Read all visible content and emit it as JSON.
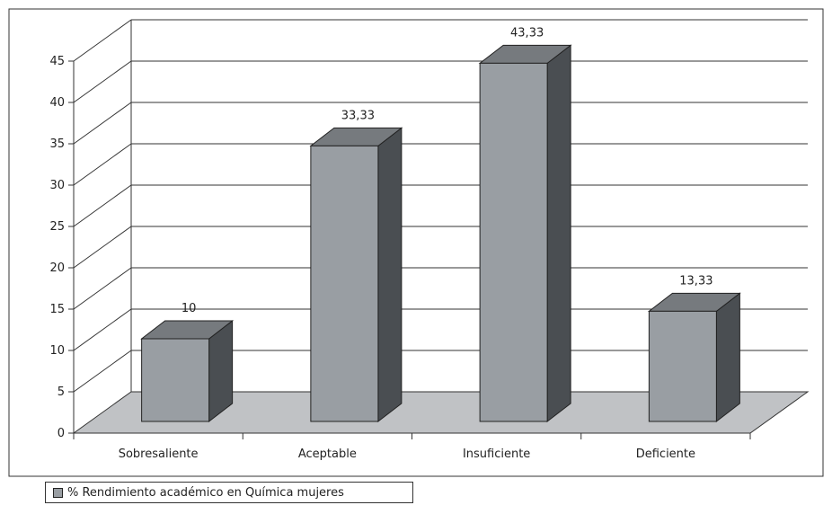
{
  "chart_data": {
    "type": "bar",
    "categories": [
      "Sobresaliente",
      "Aceptable",
      "Insuficiente",
      "Deficiente"
    ],
    "series": [
      {
        "name": "% Rendimiento académico en Química mujeres",
        "values": [
          10,
          33.33,
          43.33,
          13.33
        ]
      }
    ],
    "data_labels": [
      "10",
      "33,33",
      "43,33",
      "13,33"
    ],
    "y_ticks": [
      "0",
      "5",
      "10",
      "15",
      "20",
      "25",
      "30",
      "35",
      "40",
      "45"
    ],
    "ylim": [
      0,
      45
    ],
    "grid": true,
    "legend_position": "bottom-left",
    "colors": {
      "bar_front": "#999ea3",
      "bar_top": "#767a7e",
      "bar_side": "#4a4e52",
      "floor": "#c0c2c5",
      "gridline": "#333333"
    }
  }
}
